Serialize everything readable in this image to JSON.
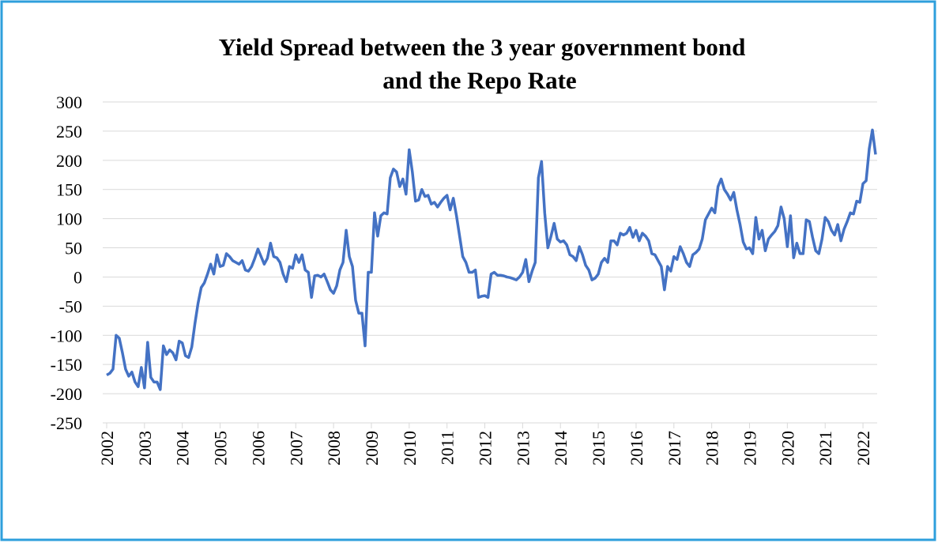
{
  "chart_data": {
    "type": "line",
    "title": "Yield Spread between the 3 year government bond",
    "subtitle": "and the Repo Rate",
    "categories": [
      "2002",
      null,
      null,
      null,
      null,
      null,
      null,
      null,
      null,
      null,
      null,
      null,
      "2003",
      null,
      null,
      null,
      null,
      null,
      null,
      null,
      null,
      null,
      null,
      null,
      "2004",
      null,
      null,
      null,
      null,
      null,
      null,
      null,
      null,
      null,
      null,
      null,
      "2005",
      null,
      null,
      null,
      null,
      null,
      null,
      null,
      null,
      null,
      null,
      null,
      "2006",
      null,
      null,
      null,
      null,
      null,
      null,
      null,
      null,
      null,
      null,
      null,
      "2007",
      null,
      null,
      null,
      null,
      null,
      null,
      null,
      null,
      null,
      null,
      null,
      "2008",
      null,
      null,
      null,
      null,
      null,
      null,
      null,
      null,
      null,
      null,
      null,
      "2009",
      null,
      null,
      null,
      null,
      null,
      null,
      null,
      null,
      null,
      null,
      null,
      "2010",
      null,
      null,
      null,
      null,
      null,
      null,
      null,
      null,
      null,
      null,
      null,
      "2011",
      null,
      null,
      null,
      null,
      null,
      null,
      null,
      null,
      null,
      null,
      null,
      "2012",
      null,
      null,
      null,
      null,
      null,
      null,
      null,
      null,
      null,
      null,
      null,
      "2013",
      null,
      null,
      null,
      null,
      null,
      null,
      null,
      null,
      null,
      null,
      null,
      "2014",
      null,
      null,
      null,
      null,
      null,
      null,
      null,
      null,
      null,
      null,
      null,
      "2015",
      null,
      null,
      null,
      null,
      null,
      null,
      null,
      null,
      null,
      null,
      null,
      "2016",
      null,
      null,
      null,
      null,
      null,
      null,
      null,
      null,
      null,
      null,
      null,
      "2017",
      null,
      null,
      null,
      null,
      null,
      null,
      null,
      null,
      null,
      null,
      null,
      "2018",
      null,
      null,
      null,
      null,
      null,
      null,
      null,
      null,
      null,
      null,
      null,
      "2019",
      null,
      null,
      null,
      null,
      null,
      null,
      null,
      null,
      null,
      null,
      null,
      "2020",
      null,
      null,
      null,
      null,
      null,
      null,
      null,
      null,
      null,
      null,
      null,
      "2021",
      null,
      null,
      null,
      null,
      null,
      null,
      null,
      null,
      null,
      null,
      null,
      "2022",
      null,
      null,
      null,
      null
    ],
    "values": [
      -168,
      -165,
      -158,
      -100,
      -105,
      -130,
      -158,
      -170,
      -163,
      -180,
      -188,
      -155,
      -190,
      -112,
      -172,
      -180,
      -180,
      -193,
      -118,
      -133,
      -125,
      -130,
      -142,
      -110,
      -113,
      -135,
      -138,
      -120,
      -80,
      -45,
      -18,
      -10,
      5,
      22,
      5,
      38,
      18,
      20,
      40,
      35,
      28,
      25,
      22,
      28,
      12,
      10,
      18,
      32,
      48,
      35,
      22,
      32,
      58,
      35,
      33,
      25,
      5,
      -8,
      18,
      15,
      38,
      25,
      38,
      12,
      8,
      -35,
      2,
      3,
      0,
      5,
      -8,
      -22,
      -28,
      -15,
      12,
      25,
      80,
      35,
      18,
      -40,
      -62,
      -62,
      -118,
      8,
      8,
      110,
      70,
      105,
      110,
      108,
      170,
      185,
      180,
      155,
      168,
      142,
      218,
      180,
      130,
      132,
      150,
      138,
      140,
      125,
      128,
      120,
      128,
      135,
      140,
      115,
      135,
      105,
      70,
      35,
      25,
      8,
      8,
      12,
      -35,
      -33,
      -32,
      -35,
      5,
      8,
      3,
      3,
      2,
      0,
      -1,
      -3,
      -5,
      0,
      8,
      30,
      -8,
      10,
      25,
      170,
      198,
      110,
      50,
      70,
      92,
      65,
      60,
      62,
      55,
      38,
      35,
      28,
      52,
      38,
      20,
      12,
      -5,
      -2,
      5,
      25,
      32,
      25,
      62,
      62,
      55,
      75,
      72,
      75,
      85,
      68,
      80,
      62,
      75,
      70,
      62,
      40,
      38,
      28,
      18,
      -22,
      18,
      10,
      35,
      30,
      52,
      40,
      25,
      18,
      38,
      42,
      48,
      65,
      98,
      108,
      118,
      110,
      155,
      168,
      150,
      142,
      132,
      145,
      115,
      90,
      60,
      48,
      50,
      40,
      102,
      65,
      80,
      45,
      65,
      72,
      78,
      88,
      120,
      100,
      52,
      105,
      33,
      58,
      40,
      40,
      98,
      95,
      68,
      45,
      40,
      65,
      102,
      95,
      80,
      72,
      90,
      62,
      82,
      95,
      110,
      108,
      130,
      128,
      160,
      165,
      220,
      252,
      210
    ],
    "color": "#4472c4",
    "ylim": [
      -250,
      300
    ],
    "yticks": [
      -250,
      -200,
      -150,
      -100,
      -50,
      0,
      50,
      100,
      150,
      200,
      250,
      300
    ],
    "grid": true
  }
}
